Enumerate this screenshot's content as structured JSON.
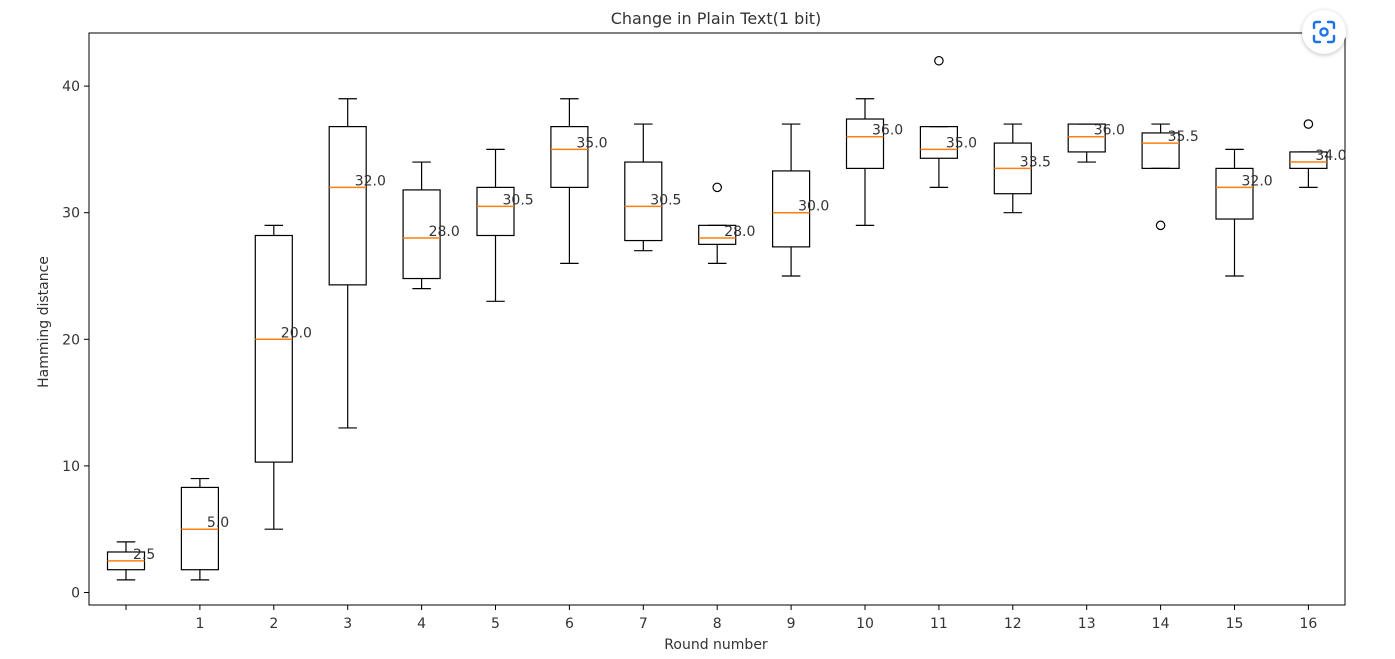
{
  "chart_data": {
    "type": "boxplot",
    "title": "Change in Plain Text(1 bit)",
    "xlabel": "Round number",
    "ylabel": "Hamming distance",
    "ylim": [
      -1,
      44
    ],
    "yticks": [
      0,
      10,
      20,
      30,
      40
    ],
    "xtick_labels": [
      "",
      "1",
      "2",
      "3",
      "4",
      "5",
      "6",
      "7",
      "8",
      "9",
      "10",
      "11",
      "12",
      "13",
      "14",
      "15",
      "16"
    ],
    "grid": false,
    "colors": {
      "box": "#000000",
      "median": "#ff7f0e",
      "text": "#333333"
    },
    "boxes": [
      {
        "round": "",
        "whisker_low": 1,
        "q1": 1.8,
        "median": 2.5,
        "q3": 3.2,
        "whisker_high": 4,
        "outliers": [],
        "label": "2.5"
      },
      {
        "round": "1",
        "whisker_low": 1,
        "q1": 1.8,
        "median": 5.0,
        "q3": 8.3,
        "whisker_high": 9,
        "outliers": [],
        "label": "5.0"
      },
      {
        "round": "2",
        "whisker_low": 5,
        "q1": 10.3,
        "median": 20.0,
        "q3": 28.2,
        "whisker_high": 29,
        "outliers": [],
        "label": "20.0"
      },
      {
        "round": "3",
        "whisker_low": 13,
        "q1": 24.3,
        "median": 32.0,
        "q3": 36.8,
        "whisker_high": 39,
        "outliers": [],
        "label": "32.0"
      },
      {
        "round": "4",
        "whisker_low": 24,
        "q1": 24.8,
        "median": 28.0,
        "q3": 31.8,
        "whisker_high": 34,
        "outliers": [],
        "label": "28.0"
      },
      {
        "round": "5",
        "whisker_low": 23,
        "q1": 28.2,
        "median": 30.5,
        "q3": 32.0,
        "whisker_high": 35,
        "outliers": [],
        "label": "30.5"
      },
      {
        "round": "6",
        "whisker_low": 26,
        "q1": 32.0,
        "median": 35.0,
        "q3": 36.8,
        "whisker_high": 39,
        "outliers": [],
        "label": "35.0"
      },
      {
        "round": "7",
        "whisker_low": 27,
        "q1": 27.8,
        "median": 30.5,
        "q3": 34.0,
        "whisker_high": 37,
        "outliers": [],
        "label": "30.5"
      },
      {
        "round": "8",
        "whisker_low": 26,
        "q1": 27.5,
        "median": 28.0,
        "q3": 29.0,
        "whisker_high": 29,
        "outliers": [
          32
        ],
        "label": "28.0"
      },
      {
        "round": "9",
        "whisker_low": 25,
        "q1": 27.3,
        "median": 30.0,
        "q3": 33.3,
        "whisker_high": 37,
        "outliers": [],
        "label": "30.0"
      },
      {
        "round": "10",
        "whisker_low": 29,
        "q1": 33.5,
        "median": 36.0,
        "q3": 37.4,
        "whisker_high": 39,
        "outliers": [],
        "label": "36.0"
      },
      {
        "round": "11",
        "whisker_low": 32,
        "q1": 34.3,
        "median": 35.0,
        "q3": 36.8,
        "whisker_high": 36.8,
        "outliers": [
          42
        ],
        "label": "35.0"
      },
      {
        "round": "12",
        "whisker_low": 30,
        "q1": 31.5,
        "median": 33.5,
        "q3": 35.5,
        "whisker_high": 37,
        "outliers": [],
        "label": "33.5"
      },
      {
        "round": "13",
        "whisker_low": 34,
        "q1": 34.8,
        "median": 36.0,
        "q3": 37.0,
        "whisker_high": 37,
        "outliers": [],
        "label": "36.0"
      },
      {
        "round": "14",
        "whisker_low": 33.5,
        "q1": 33.5,
        "median": 35.5,
        "q3": 36.3,
        "whisker_high": 37,
        "outliers": [
          29
        ],
        "label": "35.5"
      },
      {
        "round": "15",
        "whisker_low": 25,
        "q1": 29.5,
        "median": 32.0,
        "q3": 33.5,
        "whisker_high": 35,
        "outliers": [],
        "label": "32.0"
      },
      {
        "round": "16",
        "whisker_low": 32,
        "q1": 33.5,
        "median": 34.0,
        "q3": 34.8,
        "whisker_high": 34.8,
        "outliers": [
          37
        ],
        "label": "34.0"
      }
    ]
  },
  "lens_button": {
    "icon": "camera-search-icon"
  }
}
